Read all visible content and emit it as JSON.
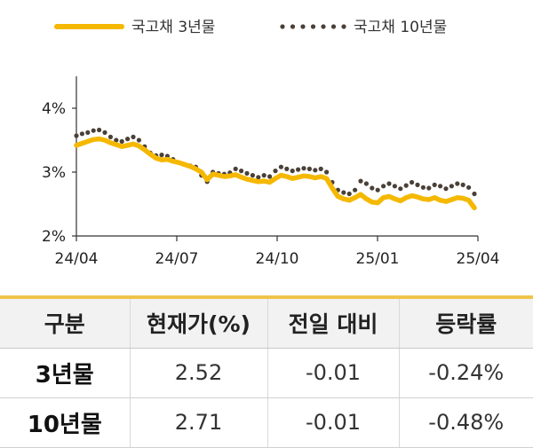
{
  "chart_data": {
    "type": "line",
    "x_ticks": [
      "24/04",
      "24/07",
      "24/10",
      "25/01",
      "25/04"
    ],
    "y_ticks": [
      "2%",
      "3%",
      "4%"
    ],
    "ylim": [
      2,
      4.5
    ],
    "series": [
      {
        "name": "국고채 3년물",
        "color": "#f5b800",
        "style": "solid",
        "values": [
          3.42,
          3.45,
          3.48,
          3.51,
          3.52,
          3.5,
          3.46,
          3.43,
          3.4,
          3.42,
          3.44,
          3.41,
          3.35,
          3.28,
          3.22,
          3.19,
          3.2,
          3.17,
          3.15,
          3.12,
          3.09,
          3.05,
          3.0,
          2.88,
          2.97,
          2.95,
          2.93,
          2.94,
          2.96,
          2.92,
          2.89,
          2.87,
          2.85,
          2.86,
          2.84,
          2.9,
          2.95,
          2.93,
          2.9,
          2.92,
          2.94,
          2.93,
          2.91,
          2.93,
          2.9,
          2.75,
          2.62,
          2.58,
          2.56,
          2.6,
          2.65,
          2.58,
          2.53,
          2.52,
          2.6,
          2.62,
          2.58,
          2.55,
          2.6,
          2.63,
          2.61,
          2.58,
          2.57,
          2.6,
          2.56,
          2.54,
          2.57,
          2.6,
          2.59,
          2.56,
          2.44
        ]
      },
      {
        "name": "국고채 10년물",
        "color": "#4a4037",
        "style": "dotted",
        "values": [
          3.57,
          3.6,
          3.62,
          3.65,
          3.66,
          3.62,
          3.55,
          3.5,
          3.48,
          3.52,
          3.55,
          3.5,
          3.4,
          3.3,
          3.26,
          3.27,
          3.25,
          3.2,
          3.15,
          3.12,
          3.1,
          3.08,
          2.95,
          2.85,
          3.0,
          2.98,
          2.97,
          2.99,
          3.05,
          3.02,
          2.98,
          2.95,
          2.92,
          2.95,
          2.93,
          3.02,
          3.08,
          3.05,
          3.02,
          3.04,
          3.06,
          3.05,
          3.03,
          3.05,
          3.0,
          2.84,
          2.72,
          2.68,
          2.66,
          2.72,
          2.86,
          2.82,
          2.75,
          2.72,
          2.78,
          2.82,
          2.78,
          2.74,
          2.79,
          2.84,
          2.8,
          2.76,
          2.75,
          2.8,
          2.78,
          2.74,
          2.78,
          2.82,
          2.8,
          2.76,
          2.66
        ]
      }
    ]
  },
  "table": {
    "headers": [
      "구분",
      "현재가(%)",
      "전일 대비",
      "등락률"
    ],
    "rows": [
      [
        "3년물",
        "2.52",
        "-0.01",
        "-0.24%"
      ],
      [
        "10년물",
        "2.71",
        "-0.01",
        "-0.48%"
      ]
    ]
  }
}
